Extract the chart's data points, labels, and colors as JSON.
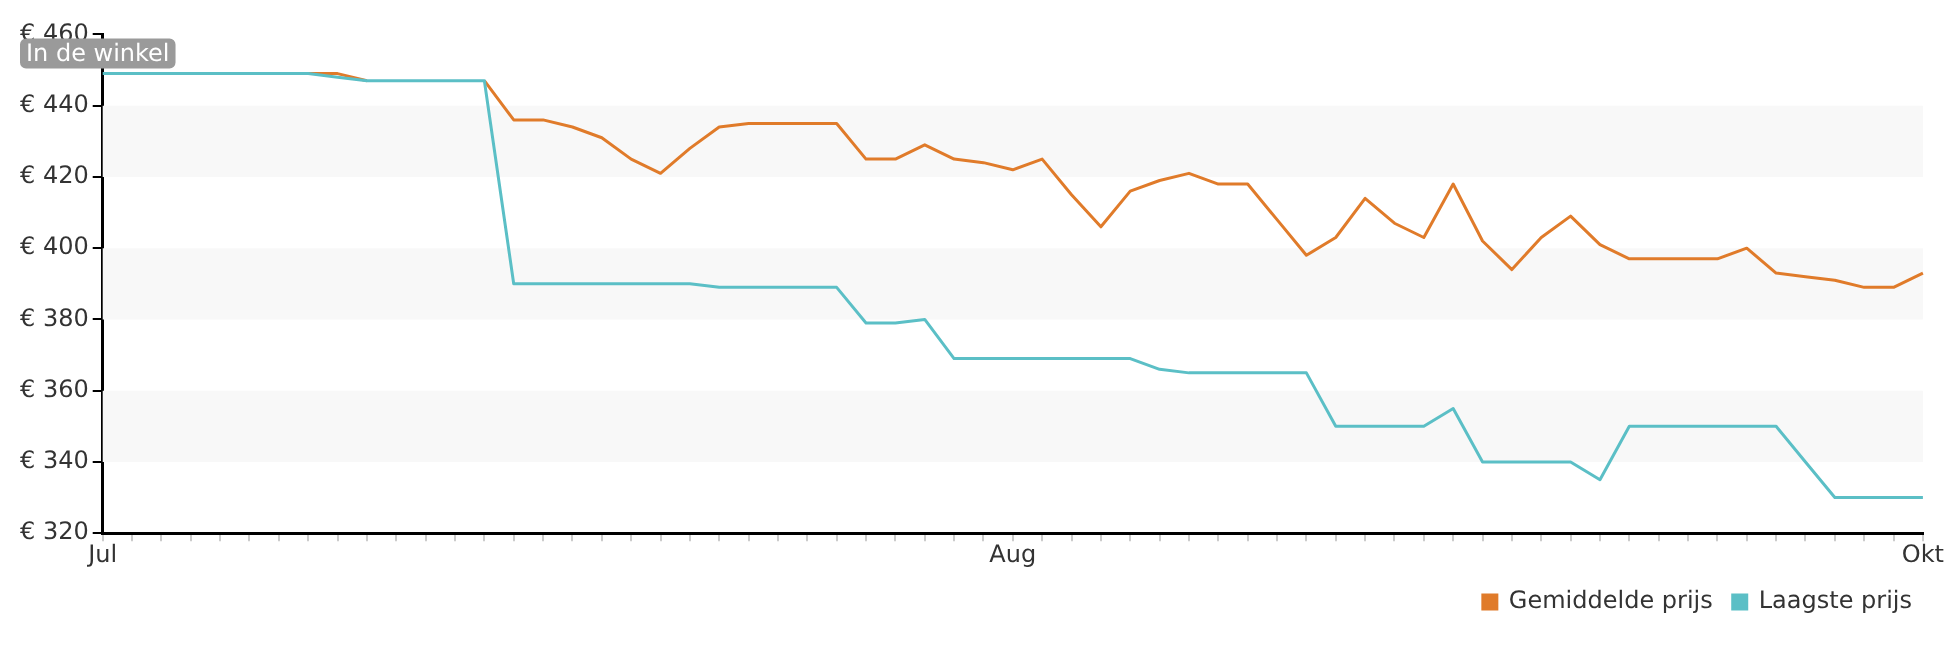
{
  "chart_data": {
    "type": "line",
    "categories": [
      "Jul",
      null,
      null,
      null,
      null,
      null,
      null,
      null,
      null,
      null,
      null,
      null,
      null,
      null,
      null,
      null,
      null,
      null,
      null,
      null,
      null,
      null,
      null,
      null,
      null,
      null,
      null,
      null,
      null,
      null,
      null,
      "Aug",
      null,
      null,
      null,
      null,
      null,
      null,
      null,
      null,
      null,
      null,
      null,
      null,
      null,
      null,
      null,
      null,
      null,
      null,
      null,
      null,
      null,
      null,
      null,
      null,
      null,
      null,
      null,
      null,
      null,
      null,
      "Okt"
    ],
    "series": [
      {
        "name": "Gemiddelde prijs",
        "color": "#e07b2a",
        "values": [
          null,
          null,
          null,
          null,
          null,
          null,
          null,
          449,
          449,
          447,
          null,
          null,
          null,
          447,
          436,
          436,
          434,
          431,
          425,
          421,
          428,
          434,
          435,
          435,
          435,
          435,
          425,
          425,
          429,
          425,
          424,
          422,
          425,
          415,
          406,
          416,
          419,
          421,
          418,
          418,
          408,
          398,
          403,
          414,
          407,
          403,
          418,
          402,
          394,
          403,
          409,
          401,
          397,
          397,
          397,
          397,
          400,
          393,
          392,
          391,
          389,
          389,
          393
        ]
      },
      {
        "name": "Laagste prijs",
        "color": "#5bbfc6",
        "values": [
          449,
          449,
          449,
          449,
          449,
          449,
          449,
          449,
          448,
          447,
          447,
          447,
          447,
          447,
          390,
          390,
          390,
          390,
          390,
          390,
          390,
          389,
          389,
          389,
          389,
          389,
          379,
          379,
          380,
          369,
          369,
          369,
          369,
          369,
          369,
          369,
          366,
          365,
          365,
          365,
          365,
          365,
          350,
          350,
          350,
          350,
          355,
          340,
          340,
          340,
          340,
          335,
          350,
          350,
          350,
          350,
          350,
          350,
          340,
          330,
          330,
          330,
          330
        ]
      }
    ],
    "ylim": [
      320,
      460
    ],
    "yticks": [
      {
        "value": 320,
        "label": "€ 320"
      },
      {
        "value": 340,
        "label": "€ 340"
      },
      {
        "value": 360,
        "label": "€ 360"
      },
      {
        "value": 380,
        "label": "€ 380"
      },
      {
        "value": 400,
        "label": "€ 400"
      },
      {
        "value": 420,
        "label": "€ 420"
      },
      {
        "value": 440,
        "label": "€ 440"
      },
      {
        "value": 460,
        "label": "€ 460"
      }
    ],
    "bands": [
      {
        "axis": "y",
        "from": 340,
        "to": 360,
        "color": "#f8f8f8"
      },
      {
        "axis": "y",
        "from": 380,
        "to": 400,
        "color": "#f8f8f8"
      },
      {
        "axis": "y",
        "from": 420,
        "to": 440,
        "color": "#f8f8f8"
      }
    ],
    "annotations": [
      "In de winkel"
    ],
    "grid": false,
    "legend": "bottom right",
    "marker": "none",
    "line_style": "solid"
  }
}
